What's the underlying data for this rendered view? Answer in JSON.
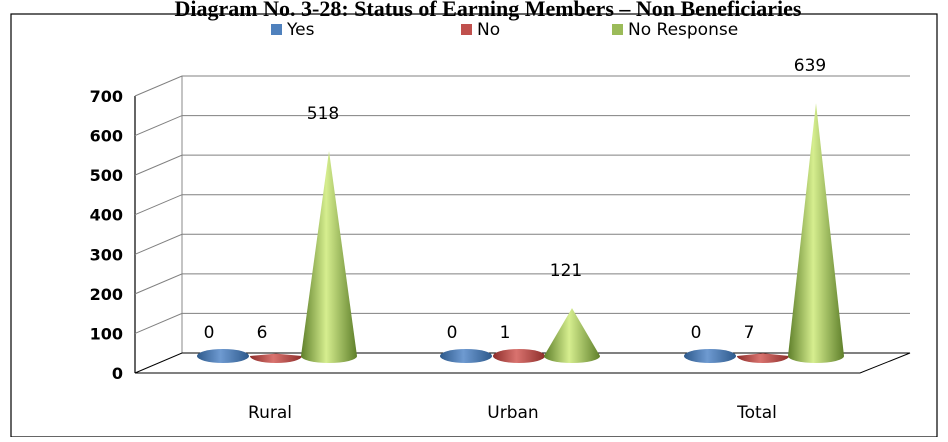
{
  "chart_data": {
    "type": "bar",
    "shape": "cone-3d",
    "title": "Diagram No. 3-28: Status of Earning Members – Non Beneficiaries",
    "categories": [
      "Rural",
      "Urban",
      "Total"
    ],
    "series": [
      {
        "name": "Yes",
        "values": [
          0,
          0,
          0
        ],
        "color": "#4F81BD"
      },
      {
        "name": "No",
        "values": [
          6,
          1,
          7
        ],
        "color": "#C0504D"
      },
      {
        "name": "No Response",
        "values": [
          518,
          121,
          639
        ],
        "color": "#9BBB59"
      }
    ],
    "ylim": [
      0,
      700
    ],
    "yticks": [
      0,
      100,
      200,
      300,
      400,
      500,
      600,
      700
    ],
    "xlabel": "",
    "ylabel": "",
    "legend_position": "top",
    "grid": true
  }
}
